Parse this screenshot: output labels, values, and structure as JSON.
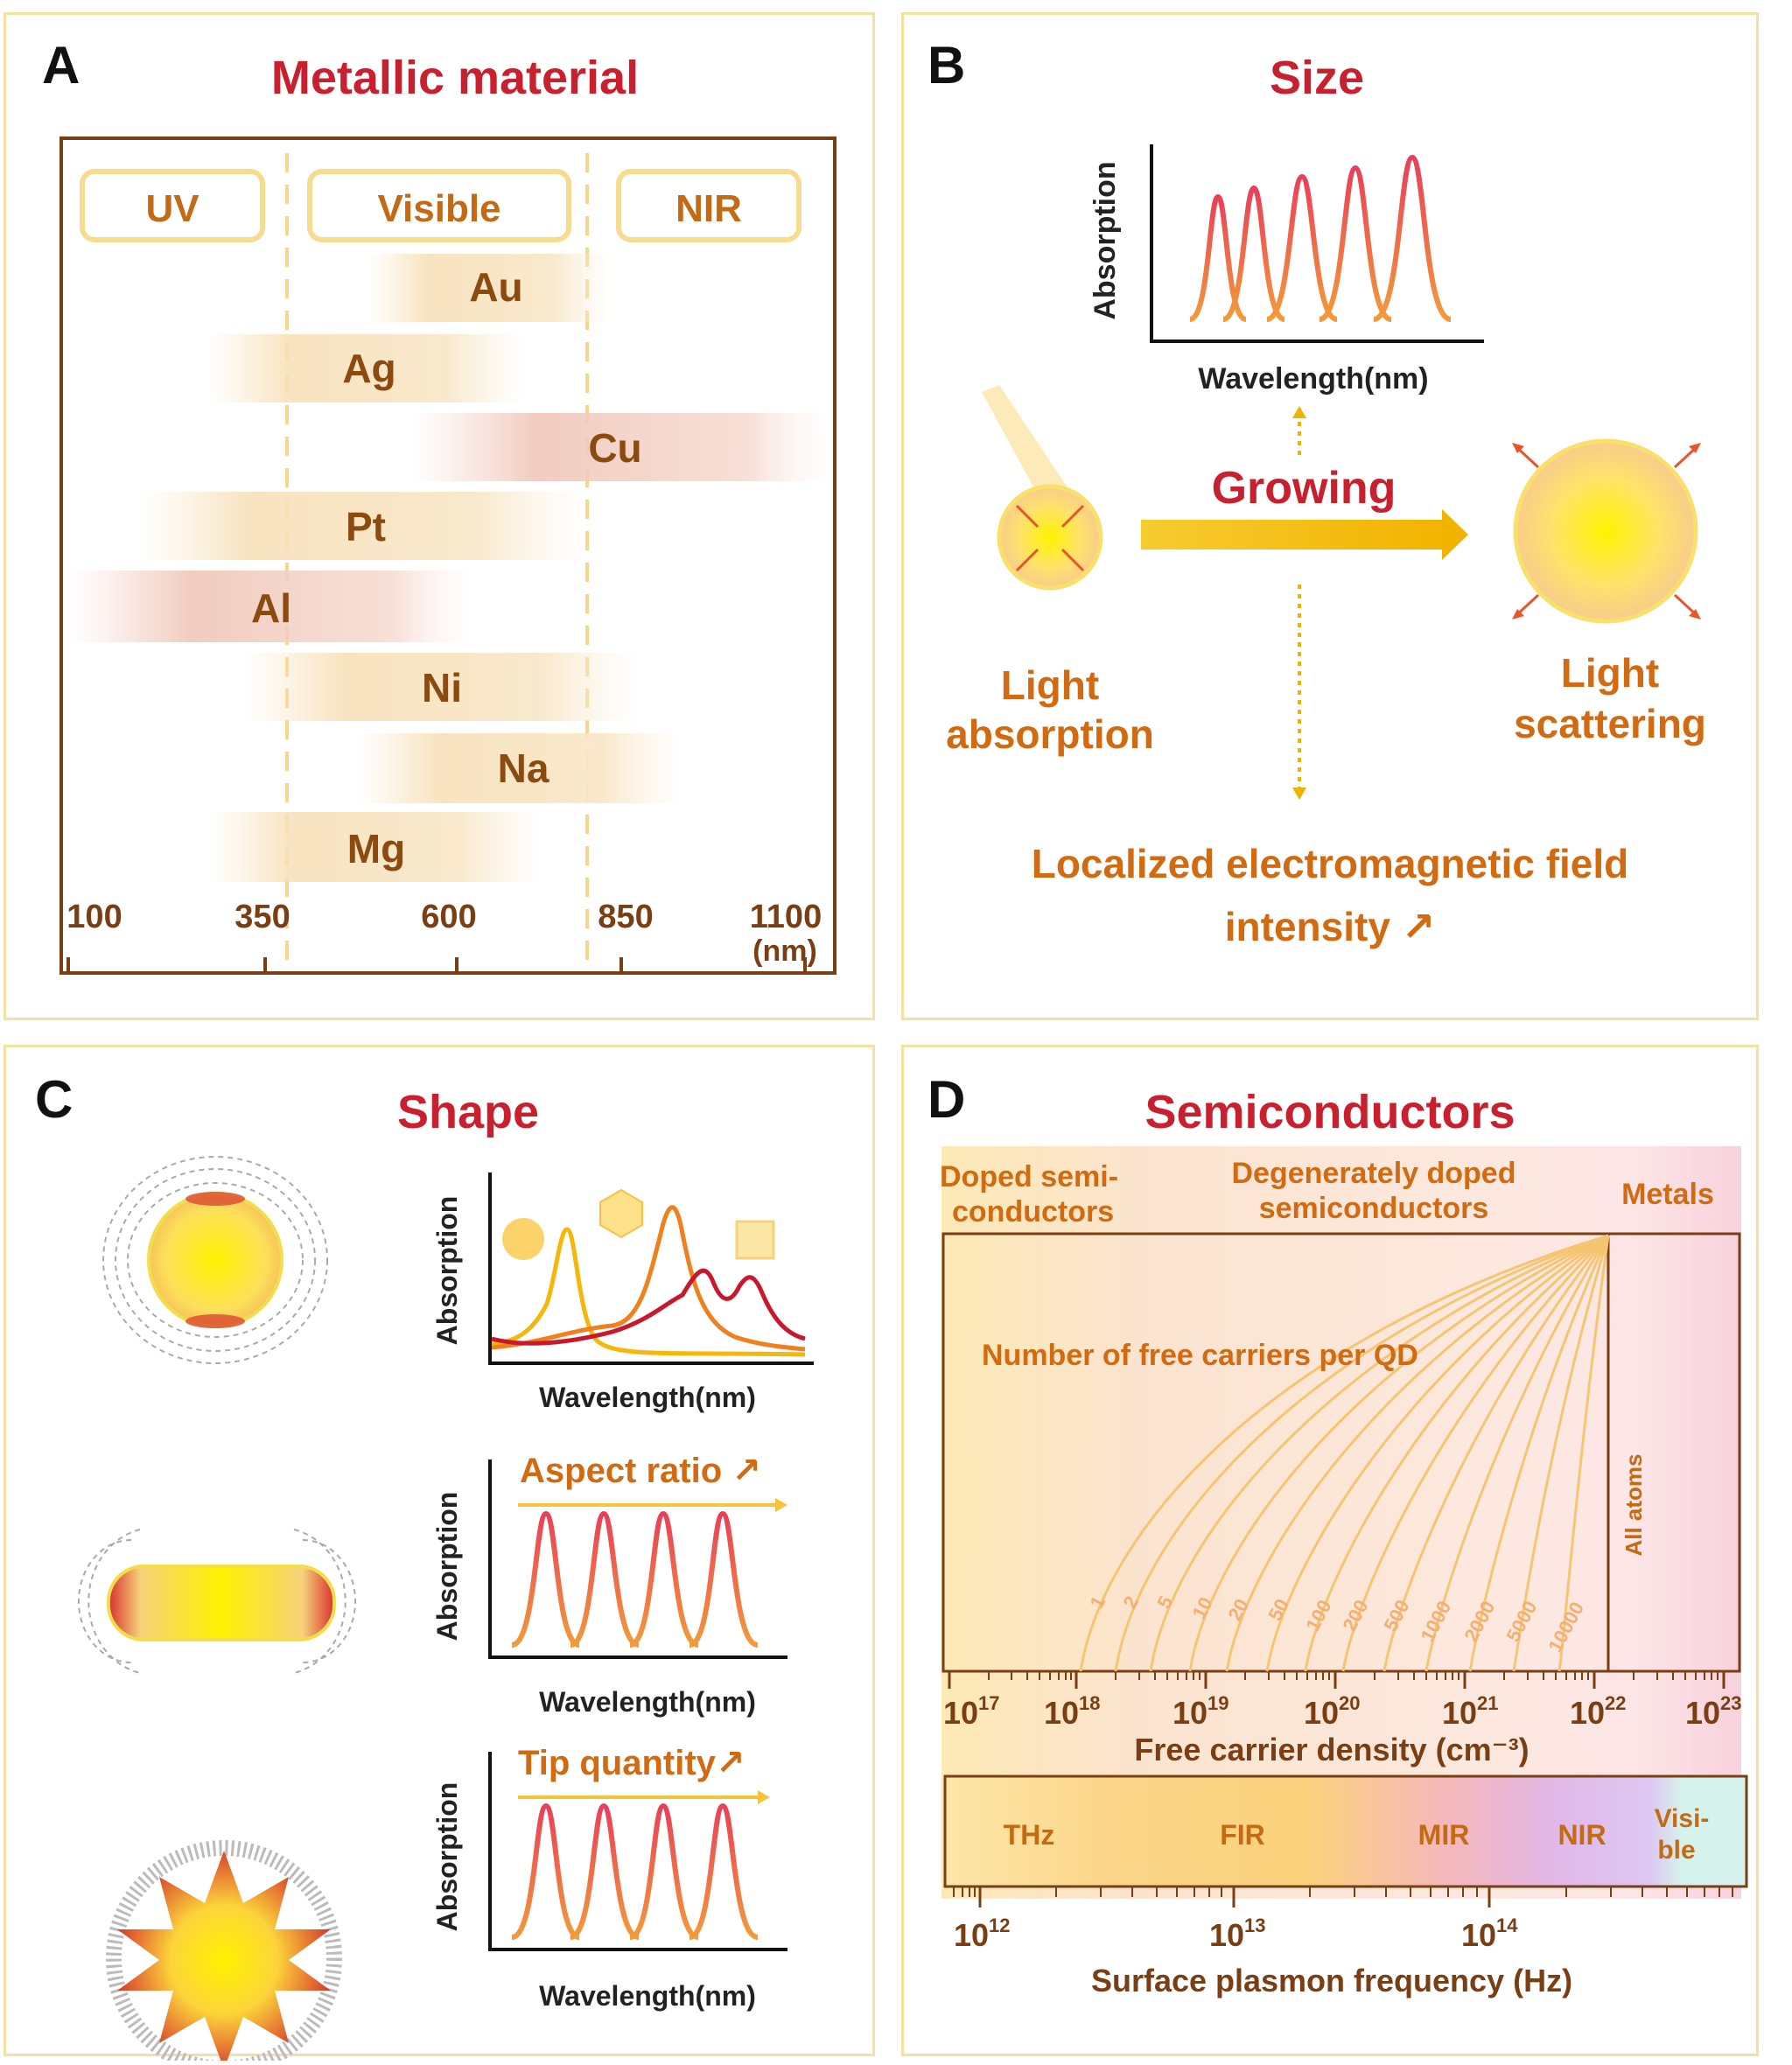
{
  "panelA": {
    "letter": "A",
    "title": "Metallic material",
    "bands": [
      "UV",
      "Visible",
      "NIR"
    ],
    "metals": [
      "Au",
      "Ag",
      "Cu",
      "Pt",
      "Al",
      "Ni",
      "Na",
      "Mg"
    ],
    "ticks": [
      "100",
      "350",
      "600",
      "850",
      "1100"
    ],
    "unit": "(nm)"
  },
  "panelB": {
    "letter": "B",
    "title": "Size",
    "ylabel": "Absorption",
    "xlabel": "Wavelength(nm)",
    "growing": "Growing",
    "absorption_line1": "Light",
    "absorption_line2": "absorption",
    "scattering_line1": "Light",
    "scattering_line2": "scattering",
    "field_line1": "Localized electromagnetic field",
    "field_line2": "intensity ↗"
  },
  "panelC": {
    "letter": "C",
    "title": "Shape",
    "ylabel": "Absorption",
    "xlabel": "Wavelength(nm)",
    "aspect": "Aspect ratio ↗",
    "tips": "Tip quantity↗"
  },
  "panelD": {
    "letter": "D",
    "title": "Semiconductors",
    "region1_line1": "Doped semi-",
    "region1_line2": "conductors",
    "region2_line1": "Degenerately doped",
    "region2_line2": "semiconductors",
    "region3": "Metals",
    "carriers_label": "Number of free carriers per QD",
    "all_atoms": "All atoms",
    "curve_labels": [
      "1",
      "2",
      "5",
      "10",
      "20",
      "50",
      "100",
      "200",
      "500",
      "1000",
      "2000",
      "5000",
      "10000"
    ],
    "density_ticks": [
      "10",
      "10",
      "10",
      "10",
      "10",
      "10",
      "10"
    ],
    "density_exps": [
      "17",
      "18",
      "19",
      "20",
      "21",
      "22",
      "23"
    ],
    "density_axis": "Free carrier density (cm⁻³)",
    "spectrum": [
      "THz",
      "FIR",
      "MIR",
      "NIR",
      "Visi-",
      "ble"
    ],
    "freq_ticks": [
      "10",
      "10",
      "10"
    ],
    "freq_exps": [
      "12",
      "13",
      "14"
    ],
    "freq_axis": "Surface plasmon frequency (Hz)"
  }
}
